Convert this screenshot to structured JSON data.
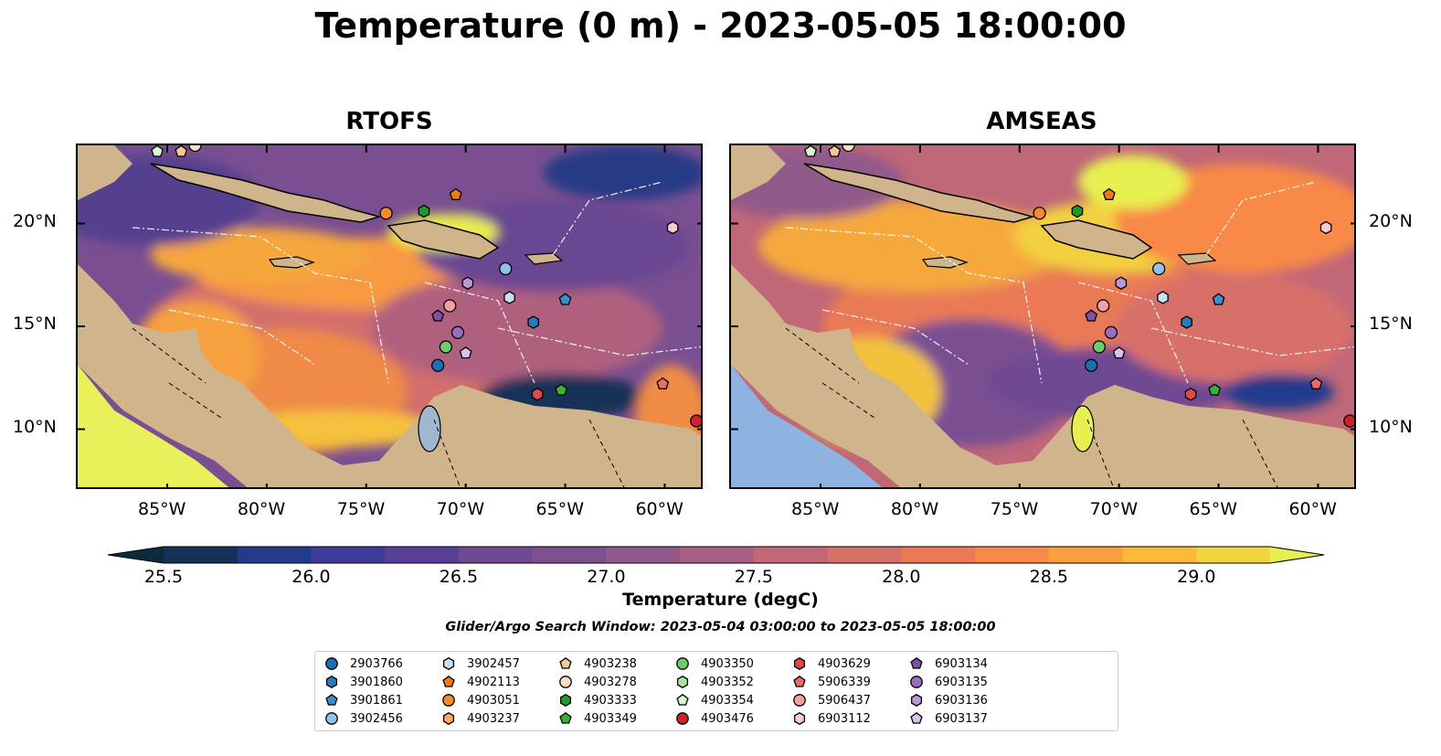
{
  "title": "Temperature (0 m) - 2023-05-05 18:00:00",
  "panels": [
    {
      "id": "rtofs",
      "title": "RTOFS"
    },
    {
      "id": "amseas",
      "title": "AMSEAS"
    }
  ],
  "axes": {
    "lon_ticks": [
      "85°W",
      "80°W",
      "75°W",
      "70°W",
      "65°W",
      "60°W"
    ],
    "lon_values": [
      -85,
      -80,
      -75,
      -70,
      -65,
      -60
    ],
    "lat_ticks": [
      "20°N",
      "15°N",
      "10°N"
    ],
    "lat_values": [
      20,
      15,
      10
    ],
    "lon_range": [
      -89.5,
      -58.0
    ],
    "lat_range": [
      7.0,
      23.8
    ]
  },
  "colorbar": {
    "label": "Temperature (degC)",
    "ticks": [
      "25.5",
      "26.0",
      "26.5",
      "27.0",
      "27.5",
      "28.0",
      "28.5",
      "29.0"
    ],
    "tick_values": [
      25.5,
      26.0,
      26.5,
      27.0,
      27.5,
      28.0,
      28.5,
      29.0
    ],
    "range": [
      25.5,
      29.25
    ],
    "colors": [
      "#0c2a3e",
      "#173059",
      "#233a8c",
      "#3d3b97",
      "#5a3f97",
      "#6f4a93",
      "#7d5090",
      "#925a8a",
      "#a95f82",
      "#c26776",
      "#d8706a",
      "#ea7a55",
      "#f88946",
      "#fa9f3e",
      "#fcb93a",
      "#f1d540",
      "#e6f050"
    ]
  },
  "search_window": "Glider/Argo Search Window: 2023-05-04 03:00:00 to 2023-05-05 18:00:00",
  "legend": [
    {
      "id": "2903766",
      "marker": "circle",
      "color": "#1f6fb0"
    },
    {
      "id": "3901860",
      "marker": "hexagon",
      "color": "#2a7bb8"
    },
    {
      "id": "3901861",
      "marker": "pentagon",
      "color": "#3a8fd0"
    },
    {
      "id": "3902456",
      "marker": "circle",
      "color": "#8fc4ea"
    },
    {
      "id": "3902457",
      "marker": "hexagon",
      "color": "#c6e1f4"
    },
    {
      "id": "4902113",
      "marker": "pentagon",
      "color": "#f07a1a"
    },
    {
      "id": "4903051",
      "marker": "circle",
      "color": "#f58a30"
    },
    {
      "id": "4903237",
      "marker": "hexagon",
      "color": "#f8ac60"
    },
    {
      "id": "4903238",
      "marker": "pentagon",
      "color": "#f8c896"
    },
    {
      "id": "4903278",
      "marker": "circle",
      "color": "#fde0c4"
    },
    {
      "id": "4903333",
      "marker": "hexagon",
      "color": "#1e9a2c"
    },
    {
      "id": "4903349",
      "marker": "pentagon",
      "color": "#3cae3c"
    },
    {
      "id": "4903350",
      "marker": "circle",
      "color": "#6fcc6a"
    },
    {
      "id": "4903352",
      "marker": "hexagon",
      "color": "#a8e6a0"
    },
    {
      "id": "4903354",
      "marker": "pentagon",
      "color": "#d8f7d0"
    },
    {
      "id": "4903476",
      "marker": "circle",
      "color": "#d0202a"
    },
    {
      "id": "4903629",
      "marker": "hexagon",
      "color": "#e04a4a"
    },
    {
      "id": "5906339",
      "marker": "pentagon",
      "color": "#ec6a6a"
    },
    {
      "id": "5906437",
      "marker": "circle",
      "color": "#f4a0a0"
    },
    {
      "id": "6903112",
      "marker": "hexagon",
      "color": "#f9cccc"
    },
    {
      "id": "6903134",
      "marker": "pentagon",
      "color": "#7e4fa8"
    },
    {
      "id": "6903135",
      "marker": "circle",
      "color": "#9a6cc0"
    },
    {
      "id": "6903136",
      "marker": "hexagon",
      "color": "#b898d8"
    },
    {
      "id": "6903137",
      "marker": "pentagon",
      "color": "#d6c4ee"
    }
  ],
  "floats": [
    {
      "id": "2903766",
      "lon": -71.4,
      "lat": 13.1
    },
    {
      "id": "3901860",
      "lon": -66.6,
      "lat": 15.2
    },
    {
      "id": "3901861",
      "lon": -65.0,
      "lat": 16.3
    },
    {
      "id": "3902456",
      "lon": -68.0,
      "lat": 17.8
    },
    {
      "id": "3902457",
      "lon": -67.8,
      "lat": 16.4
    },
    {
      "id": "4902113",
      "lon": -70.5,
      "lat": 21.4
    },
    {
      "id": "4903051",
      "lon": -74.0,
      "lat": 20.5
    },
    {
      "id": "4903238",
      "lon": -84.3,
      "lat": 23.5
    },
    {
      "id": "4903278",
      "lon": -83.6,
      "lat": 23.8
    },
    {
      "id": "4903333",
      "lon": -72.1,
      "lat": 20.6
    },
    {
      "id": "4903349",
      "lon": -65.2,
      "lat": 11.9
    },
    {
      "id": "4903350",
      "lon": -71.0,
      "lat": 14.0
    },
    {
      "id": "4903354",
      "lon": -85.5,
      "lat": 23.5
    },
    {
      "id": "4903476",
      "lon": -58.4,
      "lat": 10.4
    },
    {
      "id": "4903629",
      "lon": -66.4,
      "lat": 11.7
    },
    {
      "id": "5906339",
      "lon": -60.1,
      "lat": 12.2
    },
    {
      "id": "5906437",
      "lon": -70.8,
      "lat": 16.0
    },
    {
      "id": "6903112",
      "lon": -59.6,
      "lat": 19.8
    },
    {
      "id": "6903134",
      "lon": -71.4,
      "lat": 15.5
    },
    {
      "id": "6903135",
      "lon": -70.4,
      "lat": 14.7
    },
    {
      "id": "6903136",
      "lon": -69.9,
      "lat": 17.1
    },
    {
      "id": "6903137",
      "lon": -70.0,
      "lat": 13.7
    }
  ]
}
